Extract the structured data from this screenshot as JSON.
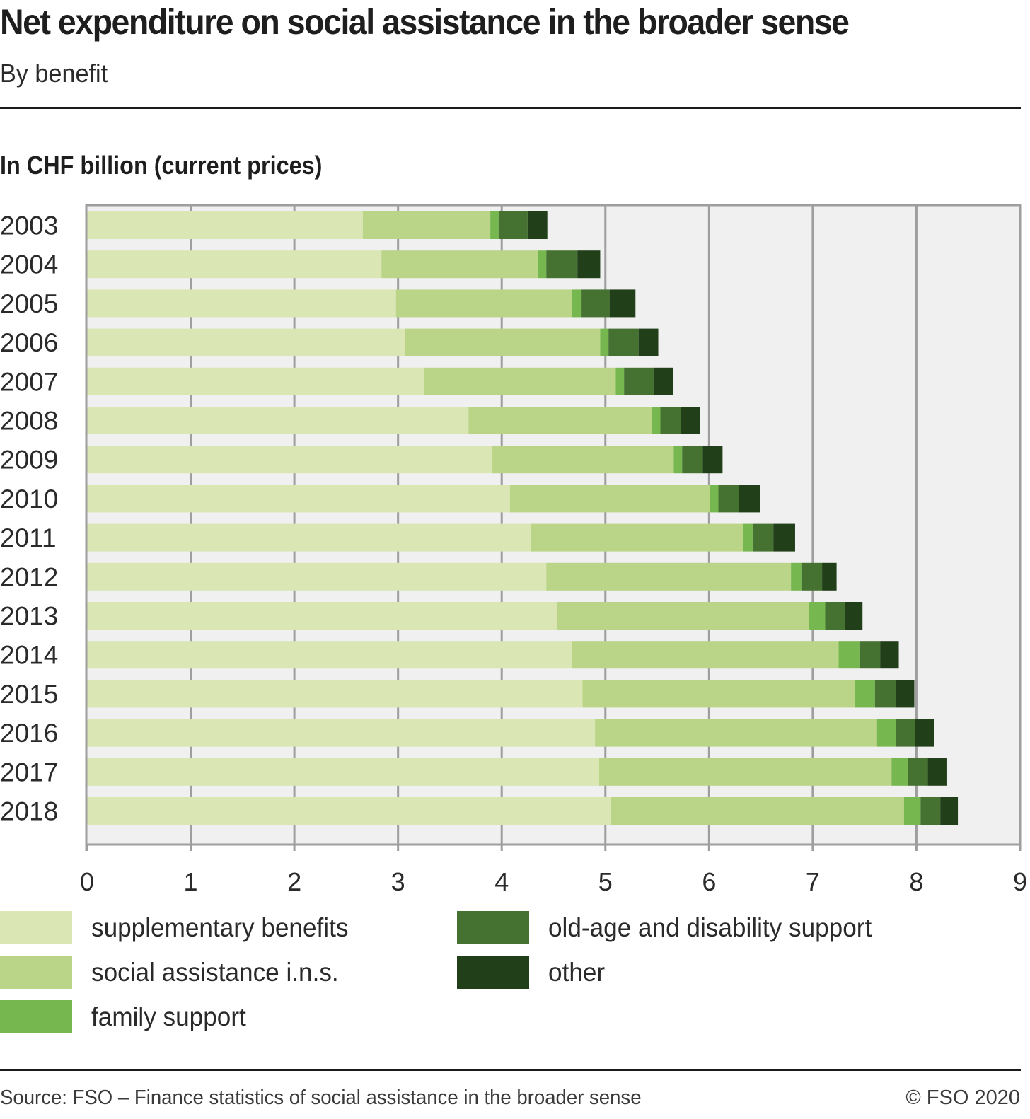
{
  "header": {
    "title": "Net expenditure on social assistance in the broader sense",
    "subtitle": "By benefit",
    "unit_label": "In CHF billion (current prices)"
  },
  "colors": {
    "supplementary_benefits": "#dae6b3",
    "social_assistance_ins": "#bad587",
    "family_support": "#76b74f",
    "old_age_disability_support": "#467231",
    "other": "#213f18",
    "plot_background": "#f0f0f0",
    "grid": "#9e9e9e",
    "text": "#1e1e1e"
  },
  "chart_data": {
    "type": "bar",
    "orientation": "horizontal",
    "stacked": true,
    "title": "Net expenditure on social assistance in the broader sense",
    "subtitle": "By benefit",
    "xlabel": "",
    "ylabel": "In CHF billion (current prices)",
    "xlim": [
      0,
      9
    ],
    "xticks": [
      "0",
      "1",
      "2",
      "3",
      "4",
      "5",
      "6",
      "7",
      "8",
      "9"
    ],
    "grid": true,
    "legend_position": "bottom",
    "categories": [
      "2003",
      "2004",
      "2005",
      "2006",
      "2007",
      "2008",
      "2009",
      "2010",
      "2011",
      "2012",
      "2013",
      "2014",
      "2015",
      "2016",
      "2017",
      "2018"
    ],
    "series": [
      {
        "name": "supplementary benefits",
        "color": "#dae6b3",
        "values": [
          2.66,
          2.84,
          2.98,
          3.07,
          3.25,
          3.68,
          3.91,
          4.08,
          4.28,
          4.43,
          4.53,
          4.68,
          4.78,
          4.9,
          4.94,
          5.05
        ]
      },
      {
        "name": "social assistance i.n.s.",
        "color": "#bad587",
        "values": [
          1.23,
          1.51,
          1.7,
          1.88,
          1.85,
          1.77,
          1.75,
          1.93,
          2.05,
          2.36,
          2.43,
          2.57,
          2.63,
          2.72,
          2.82,
          2.83
        ]
      },
      {
        "name": "family support",
        "color": "#76b74f",
        "values": [
          0.08,
          0.08,
          0.09,
          0.08,
          0.08,
          0.08,
          0.08,
          0.08,
          0.09,
          0.1,
          0.16,
          0.2,
          0.19,
          0.18,
          0.16,
          0.16
        ]
      },
      {
        "name": "old-age and disability support",
        "color": "#467231",
        "values": [
          0.28,
          0.3,
          0.27,
          0.29,
          0.29,
          0.2,
          0.2,
          0.2,
          0.2,
          0.2,
          0.19,
          0.2,
          0.2,
          0.19,
          0.19,
          0.19
        ]
      },
      {
        "name": "other",
        "color": "#213f18",
        "values": [
          0.19,
          0.22,
          0.25,
          0.19,
          0.18,
          0.18,
          0.19,
          0.2,
          0.21,
          0.14,
          0.17,
          0.18,
          0.18,
          0.18,
          0.18,
          0.17
        ]
      }
    ]
  },
  "legend": {
    "items": [
      {
        "label": "supplementary benefits",
        "color": "#dae6b3"
      },
      {
        "label": "social assistance i.n.s.",
        "color": "#bad587"
      },
      {
        "label": "family support",
        "color": "#76b74f"
      },
      {
        "label": "old-age and disability support",
        "color": "#467231"
      },
      {
        "label": "other",
        "color": "#213f18"
      }
    ]
  },
  "footer": {
    "source": "Source: FSO – Finance statistics of social assistance in the broader sense",
    "copyright": "© FSO 2020"
  }
}
